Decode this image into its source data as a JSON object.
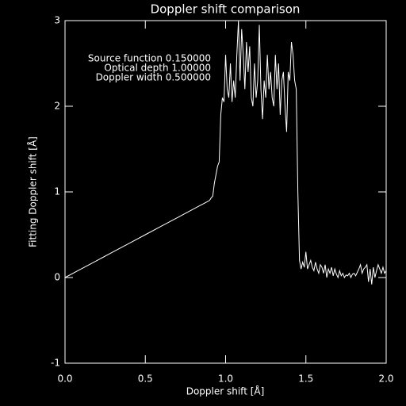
{
  "chart_data": {
    "type": "line",
    "title": "Doppler shift comparison",
    "xlabel": "Doppler shift [Å]",
    "ylabel": "Fitting Doppler shift [Å]",
    "annotations": [
      "Source function  0.150000",
      "Optical depth  1.00000",
      "Doppler width  0.500000"
    ],
    "xlim": [
      0,
      2
    ],
    "ylim": [
      -1,
      3
    ],
    "xticks": [
      {
        "value": 0,
        "label": "0.0"
      },
      {
        "value": 0.5,
        "label": "0.5"
      },
      {
        "value": 1,
        "label": "1.0"
      },
      {
        "value": 1.5,
        "label": "1.5"
      },
      {
        "value": 2,
        "label": "2.0"
      }
    ],
    "yticks": [
      -1,
      0,
      1,
      2,
      3
    ],
    "color": "#ffffff",
    "x": [
      0,
      0.1,
      0.2,
      0.3,
      0.4,
      0.5,
      0.6,
      0.7,
      0.8,
      0.9,
      0.91,
      0.92,
      0.93,
      0.94,
      0.95,
      0.96,
      0.97,
      0.98,
      0.99,
      1.0,
      1.01,
      1.02,
      1.03,
      1.04,
      1.05,
      1.06,
      1.07,
      1.08,
      1.09,
      1.1,
      1.11,
      1.12,
      1.13,
      1.14,
      1.15,
      1.16,
      1.17,
      1.18,
      1.19,
      1.2,
      1.21,
      1.22,
      1.23,
      1.24,
      1.25,
      1.26,
      1.27,
      1.28,
      1.29,
      1.3,
      1.31,
      1.32,
      1.33,
      1.34,
      1.35,
      1.36,
      1.37,
      1.38,
      1.39,
      1.4,
      1.41,
      1.42,
      1.43,
      1.44,
      1.45,
      1.46,
      1.47,
      1.48,
      1.49,
      1.5,
      1.51,
      1.52,
      1.53,
      1.54,
      1.55,
      1.56,
      1.57,
      1.58,
      1.59,
      1.6,
      1.61,
      1.62,
      1.63,
      1.64,
      1.65,
      1.66,
      1.67,
      1.68,
      1.69,
      1.7,
      1.71,
      1.72,
      1.73,
      1.74,
      1.75,
      1.76,
      1.77,
      1.78,
      1.79,
      1.8,
      1.81,
      1.82,
      1.83,
      1.84,
      1.85,
      1.86,
      1.87,
      1.88,
      1.89,
      1.9,
      1.91,
      1.92,
      1.93,
      1.94,
      1.95,
      1.96,
      1.97,
      1.98,
      1.99,
      2.0
    ],
    "values": [
      0,
      0.1,
      0.2,
      0.3,
      0.4,
      0.5,
      0.6,
      0.7,
      0.8,
      0.9,
      0.93,
      0.95,
      1.1,
      1.2,
      1.3,
      1.35,
      1.9,
      2.1,
      2.05,
      2.6,
      2.2,
      2.1,
      2.5,
      2.05,
      2.3,
      2.1,
      2.6,
      3.0,
      2.3,
      2.9,
      2.6,
      2.2,
      2.75,
      2.4,
      2.7,
      2.1,
      2.0,
      2.5,
      2.1,
      2.3,
      2.95,
      2.2,
      1.85,
      2.3,
      2.1,
      2.6,
      2.2,
      2.4,
      2.1,
      2.0,
      2.6,
      2.2,
      2.5,
      1.9,
      2.3,
      2.4,
      2.0,
      1.7,
      2.4,
      2.3,
      2.75,
      2.6,
      2.3,
      2.2,
      1.0,
      0.2,
      0.1,
      0.18,
      0.12,
      0.3,
      0.1,
      0.15,
      0.2,
      0.12,
      0.08,
      0.18,
      0.1,
      0.05,
      0.15,
      0.12,
      0.05,
      0.15,
      0.0,
      0.1,
      0.05,
      0.12,
      0.02,
      0.1,
      0.04,
      0.0,
      0.08,
      0.02,
      0.05,
      0.0,
      0.03,
      0.02,
      0.05,
      0.0,
      0.04,
      0.05,
      0.02,
      0.06,
      0.1,
      0.15,
      0.05,
      0.1,
      0.12,
      0.15,
      -0.05,
      0.1,
      -0.08,
      0.12,
      0.0,
      0.08,
      0.15,
      0.1,
      0.05,
      0.12,
      0.05,
      0.08
    ]
  }
}
